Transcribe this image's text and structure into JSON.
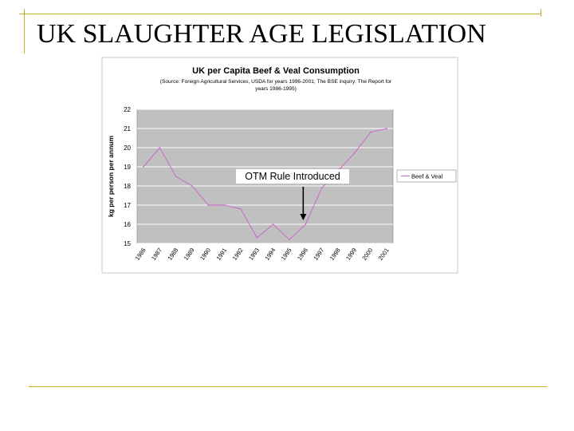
{
  "slide": {
    "title": "UK SLAUGHTER AGE LEGISLATION"
  },
  "colors": {
    "rule": "#c9b22e",
    "plot_bg": "#c0c0c0",
    "series": "#cc66cc",
    "grid": "#ffffff"
  },
  "chart_data": {
    "type": "line",
    "title": "UK per Capita Beef & Veal Consumption",
    "subtitle_line1": "(Source: Foreign Agricultural Services, USDA for years 1996-2001; The BSE inquiry: The Report for",
    "subtitle_line2": "years 1986-1995)",
    "xlabel": "",
    "ylabel": "kg per person per annum",
    "ylim": [
      15,
      22
    ],
    "yticks": [
      "15",
      "16",
      "17",
      "18",
      "19",
      "20",
      "21",
      "22"
    ],
    "categories": [
      "1986",
      "1987",
      "1988",
      "1989",
      "1990",
      "1991",
      "1992",
      "1993",
      "1994",
      "1995",
      "1996",
      "1997",
      "1998",
      "1999",
      "2000",
      "2001"
    ],
    "series": [
      {
        "name": "Beef & Veal",
        "values": [
          19.0,
          20.0,
          18.5,
          18.0,
          17.0,
          17.0,
          16.8,
          15.3,
          16.0,
          15.2,
          16.0,
          17.9,
          18.8,
          19.7,
          20.8,
          21.0
        ]
      }
    ],
    "grid": true,
    "legend": "right",
    "annotation": {
      "text": "OTM Rule Introduced",
      "category": "1996"
    }
  }
}
